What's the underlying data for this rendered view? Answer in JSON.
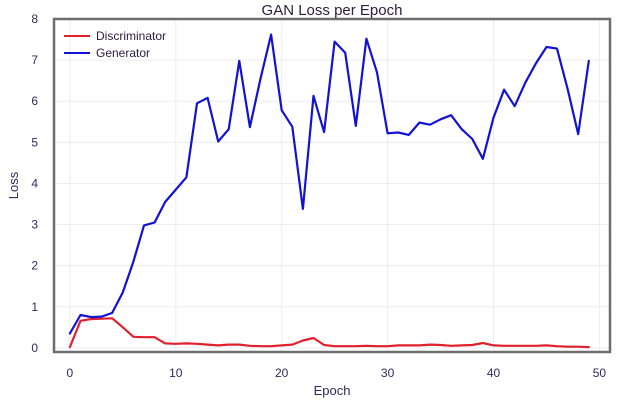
{
  "chart_data": {
    "type": "line",
    "title": "GAN Loss per Epoch",
    "xlabel": "Epoch",
    "ylabel": "Loss",
    "xlim": [
      -1.5,
      51
    ],
    "ylim": [
      -0.1,
      8
    ],
    "xticks": [
      0,
      10,
      20,
      30,
      40,
      50
    ],
    "yticks": [
      0,
      1,
      2,
      3,
      4,
      5,
      6,
      7,
      8
    ],
    "grid": true,
    "legend_position": "top-left",
    "x": [
      0,
      1,
      2,
      3,
      4,
      5,
      6,
      7,
      8,
      9,
      10,
      11,
      12,
      13,
      14,
      15,
      16,
      17,
      18,
      19,
      20,
      21,
      22,
      23,
      24,
      25,
      26,
      27,
      28,
      29,
      30,
      31,
      32,
      33,
      34,
      35,
      36,
      37,
      38,
      39,
      40,
      41,
      42,
      43,
      44,
      45,
      46,
      47,
      48,
      49
    ],
    "series": [
      {
        "name": "Discriminator",
        "color": "#e0202c",
        "values": [
          0.02,
          0.66,
          0.7,
          0.71,
          0.72,
          0.5,
          0.27,
          0.26,
          0.26,
          0.11,
          0.1,
          0.11,
          0.1,
          0.08,
          0.06,
          0.08,
          0.08,
          0.05,
          0.04,
          0.04,
          0.06,
          0.08,
          0.18,
          0.24,
          0.07,
          0.04,
          0.04,
          0.04,
          0.05,
          0.04,
          0.04,
          0.06,
          0.06,
          0.06,
          0.08,
          0.07,
          0.05,
          0.06,
          0.07,
          0.12,
          0.06,
          0.05,
          0.05,
          0.05,
          0.05,
          0.06,
          0.04,
          0.03,
          0.03,
          0.02
        ]
      },
      {
        "name": "Generator",
        "color": "#1212d4",
        "values": [
          0.35,
          0.8,
          0.75,
          0.76,
          0.85,
          1.35,
          2.1,
          2.98,
          3.05,
          3.55,
          3.85,
          4.15,
          5.95,
          6.08,
          5.02,
          5.32,
          6.98,
          5.37,
          6.55,
          7.62,
          5.78,
          5.38,
          3.38,
          6.13,
          5.25,
          7.45,
          7.18,
          5.4,
          7.52,
          6.7,
          5.22,
          5.24,
          5.18,
          5.48,
          5.43,
          5.56,
          5.66,
          5.32,
          5.08,
          4.6,
          5.6,
          6.28,
          5.88,
          6.45,
          6.92,
          7.32,
          7.28,
          6.3,
          5.2,
          6.98
        ]
      }
    ]
  }
}
